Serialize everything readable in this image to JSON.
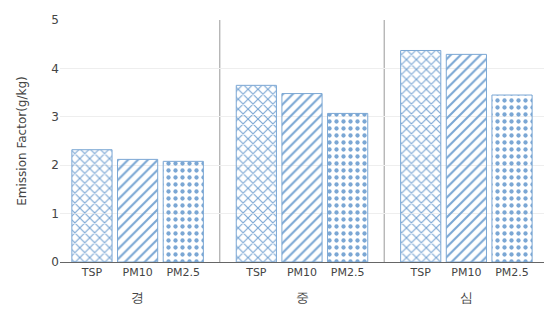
{
  "chart_data": {
    "type": "bar",
    "categories": [
      "TSP",
      "PM10",
      "PM2.5",
      "TSP",
      "PM10",
      "PM2.5",
      "TSP",
      "PM10",
      "PM2.5"
    ],
    "values": [
      2.32,
      2.12,
      2.08,
      3.65,
      3.48,
      3.07,
      4.37,
      4.29,
      3.45
    ],
    "annotations": [
      {
        "text": "경"
      },
      {
        "text": "중"
      },
      {
        "text": "심"
      }
    ],
    "ylabel": "Emission Factor(g/kg)",
    "ylim": [
      0,
      5
    ],
    "yticks": [
      0,
      1,
      2,
      3,
      4,
      5
    ],
    "color": "#C5D9F1",
    "grid": true
  }
}
